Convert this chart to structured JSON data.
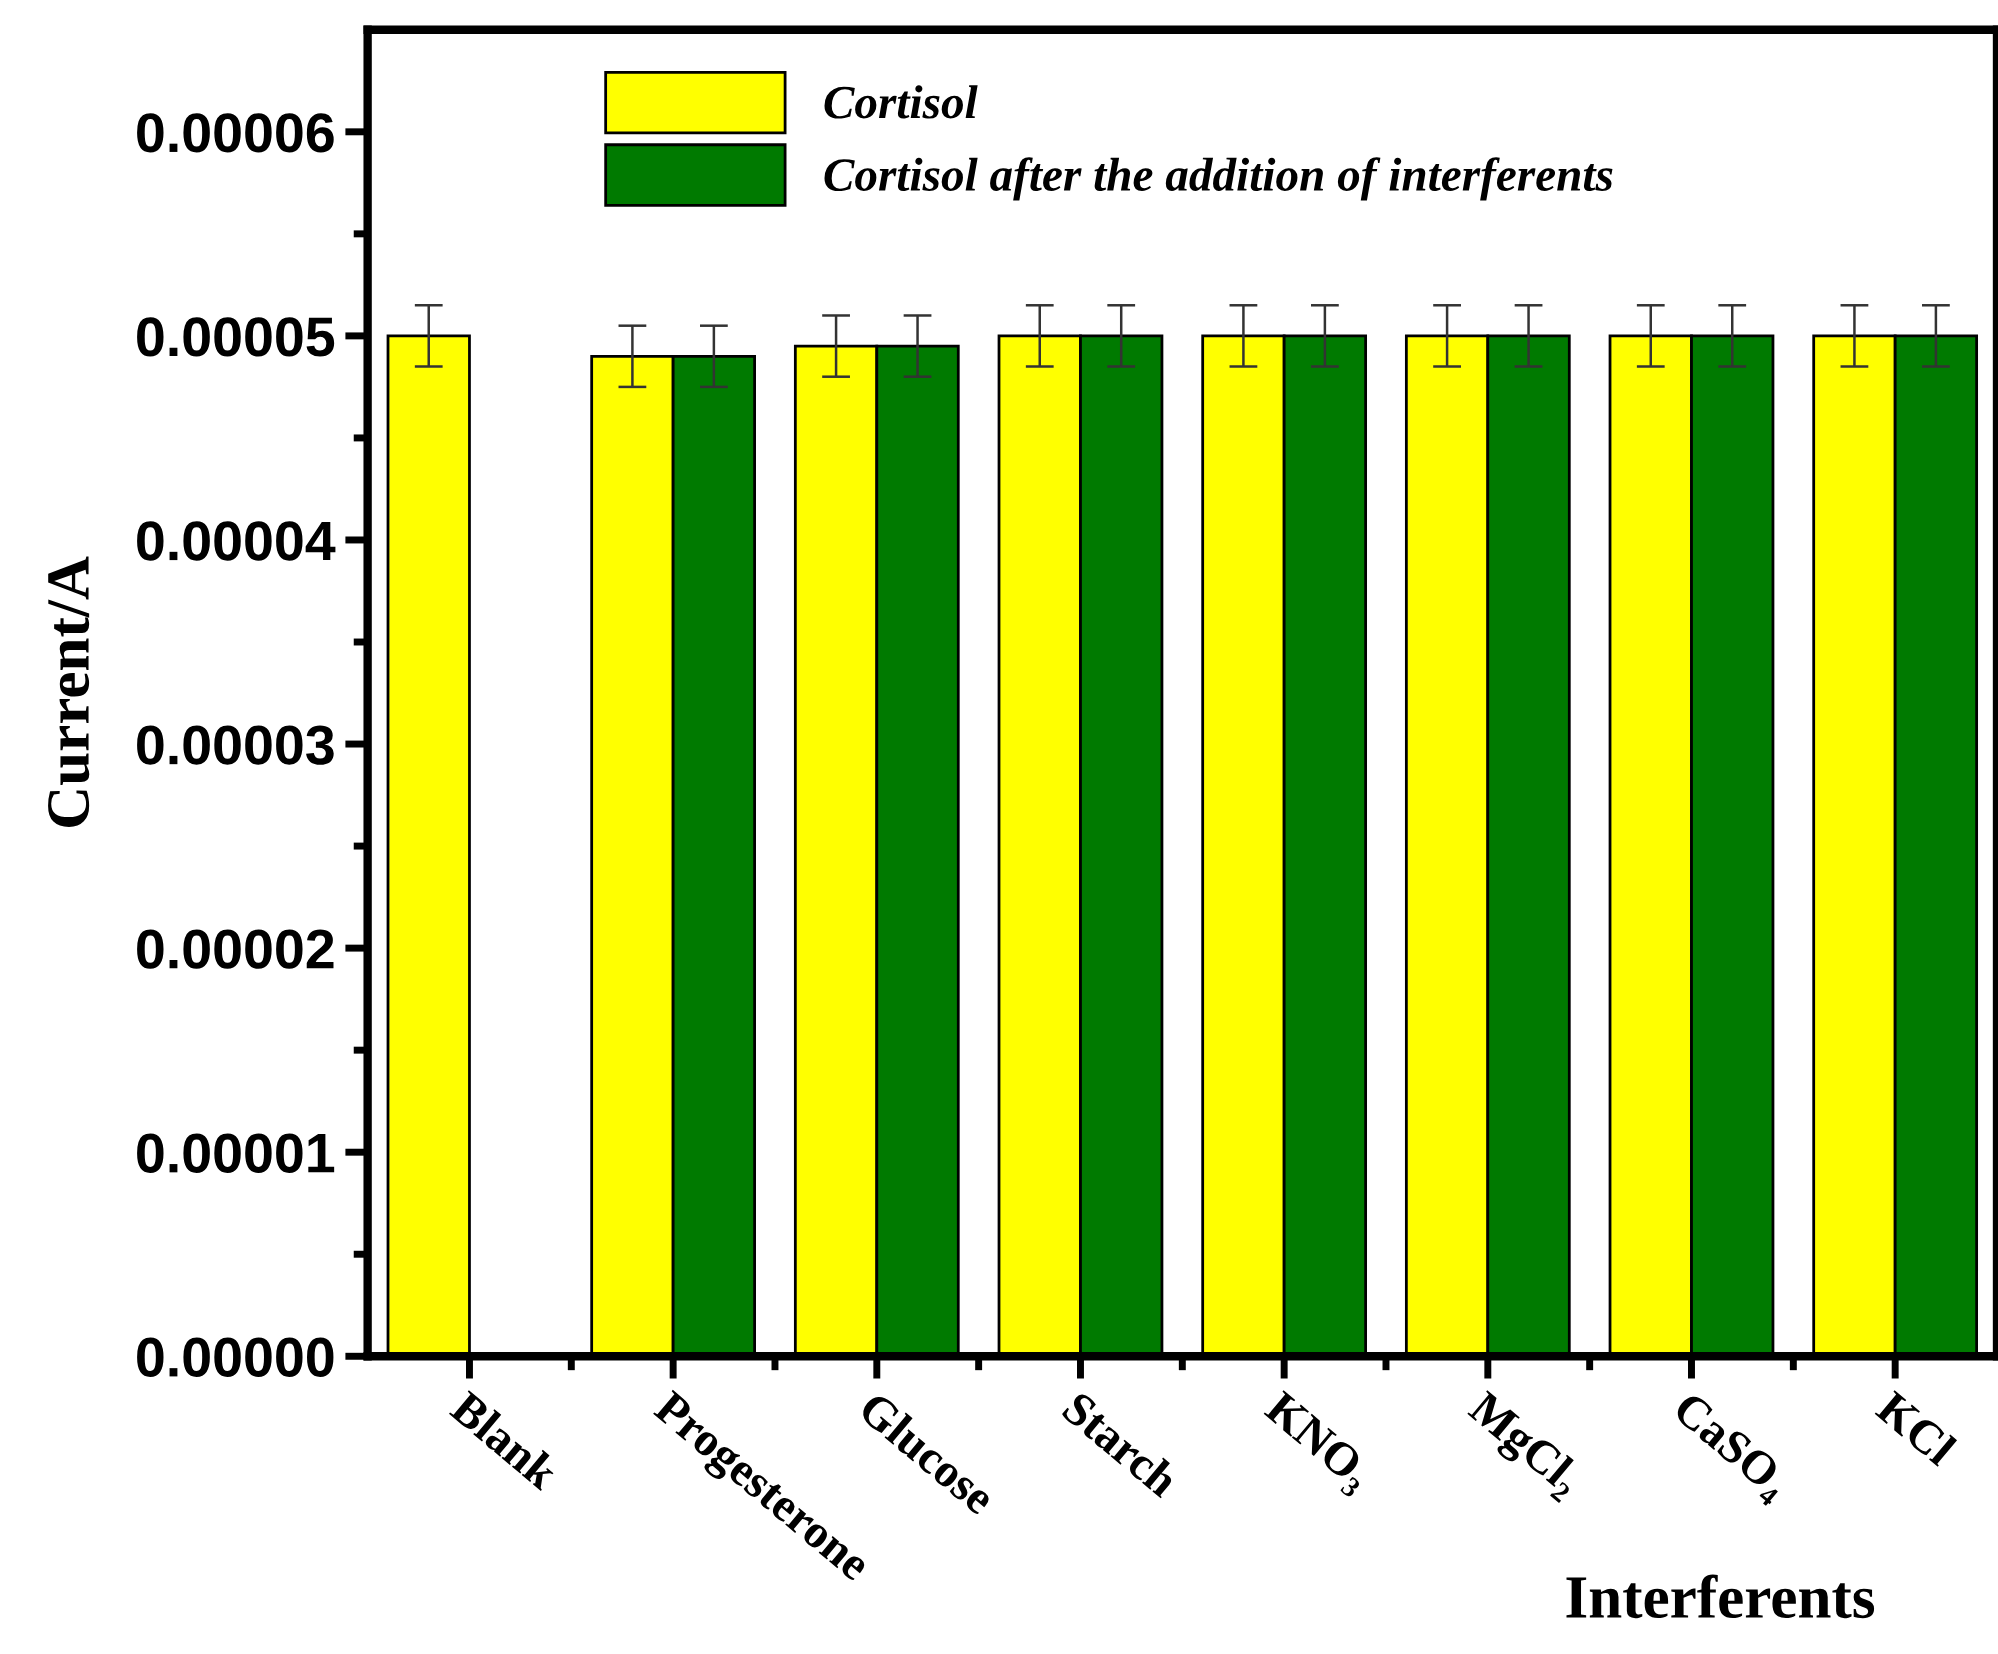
{
  "chart_data": {
    "type": "bar",
    "xlabel": "Interferents",
    "ylabel": "Current/A",
    "categories": [
      "Blank",
      "Progesterone",
      "Glucose",
      "Starch",
      "KNO₃",
      "MgCl₂",
      "CaSO₄",
      "KCl"
    ],
    "series": [
      {
        "name": "Cortisol",
        "color": "#ffff00",
        "values": [
          5e-05,
          4.9e-05,
          4.95e-05,
          5e-05,
          5e-05,
          5e-05,
          5e-05,
          5e-05
        ],
        "errors": [
          1.5e-06,
          1.5e-06,
          1.5e-06,
          1.5e-06,
          1.5e-06,
          1.5e-06,
          1.5e-06,
          1.5e-06
        ]
      },
      {
        "name": "Cortisol after the addition of interferents",
        "color": "#007a00",
        "values": [
          null,
          4.9e-05,
          4.95e-05,
          5e-05,
          5e-05,
          5e-05,
          5e-05,
          5e-05
        ],
        "errors": [
          null,
          1.5e-06,
          1.5e-06,
          1.5e-06,
          1.5e-06,
          1.5e-06,
          1.5e-06,
          1.5e-06
        ]
      }
    ],
    "ylim": [
      0,
      6.5e-05
    ],
    "yticks": [
      {
        "value": 0,
        "label": "0.00000"
      },
      {
        "value": 5e-06,
        "label": null
      },
      {
        "value": 1e-05,
        "label": "0.00001"
      },
      {
        "value": 1.5e-05,
        "label": null
      },
      {
        "value": 2e-05,
        "label": "0.00002"
      },
      {
        "value": 2.5e-05,
        "label": null
      },
      {
        "value": 3e-05,
        "label": "0.00003"
      },
      {
        "value": 3.5e-05,
        "label": null
      },
      {
        "value": 4e-05,
        "label": "0.00004"
      },
      {
        "value": 4.5e-05,
        "label": null
      },
      {
        "value": 5e-05,
        "label": "0.00005"
      },
      {
        "value": 5.5e-05,
        "label": null
      },
      {
        "value": 6e-05,
        "label": "0.00006"
      }
    ],
    "grid": false,
    "legend": "top left"
  }
}
